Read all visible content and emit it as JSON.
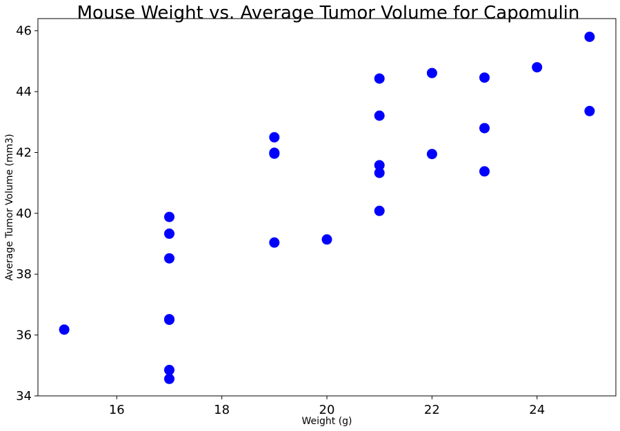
{
  "chart_data": {
    "type": "scatter",
    "title": "Mouse Weight vs. Average Tumor Volume for Capomulin",
    "xlabel": "Weight (g)",
    "ylabel": "Average Tumor Volume (mm3)",
    "xlim": [
      14.5,
      25.5
    ],
    "ylim": [
      34,
      46.4
    ],
    "xticks": [
      16,
      18,
      20,
      22,
      24
    ],
    "yticks": [
      34,
      36,
      38,
      40,
      42,
      44,
      46
    ],
    "grid": false,
    "marker_color": "#0000ff",
    "points": [
      {
        "x": 15,
        "y": 36.18
      },
      {
        "x": 17,
        "y": 34.56
      },
      {
        "x": 17,
        "y": 34.85
      },
      {
        "x": 17,
        "y": 36.5
      },
      {
        "x": 17,
        "y": 36.52
      },
      {
        "x": 17,
        "y": 38.52
      },
      {
        "x": 17,
        "y": 39.33
      },
      {
        "x": 17,
        "y": 39.88
      },
      {
        "x": 19,
        "y": 39.04
      },
      {
        "x": 19,
        "y": 41.96
      },
      {
        "x": 19,
        "y": 41.99
      },
      {
        "x": 19,
        "y": 42.5
      },
      {
        "x": 20,
        "y": 39.14
      },
      {
        "x": 21,
        "y": 40.08
      },
      {
        "x": 21,
        "y": 41.33
      },
      {
        "x": 21,
        "y": 41.58
      },
      {
        "x": 21,
        "y": 43.21
      },
      {
        "x": 21,
        "y": 44.43
      },
      {
        "x": 22,
        "y": 41.95
      },
      {
        "x": 22,
        "y": 44.61
      },
      {
        "x": 23,
        "y": 41.38
      },
      {
        "x": 23,
        "y": 42.8
      },
      {
        "x": 23,
        "y": 44.46
      },
      {
        "x": 24,
        "y": 44.8
      },
      {
        "x": 25,
        "y": 43.36
      },
      {
        "x": 25,
        "y": 45.8
      }
    ]
  }
}
